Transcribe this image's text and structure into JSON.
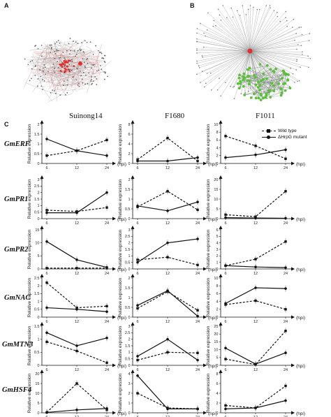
{
  "panels": {
    "a_label": "A",
    "b_label": "B",
    "c_label": "C"
  },
  "columns": [
    "Suinong14",
    "F1680",
    "F1011"
  ],
  "legend": {
    "wild_type": "Wild type",
    "mutant": "ΔHrpG mutant"
  },
  "axis": {
    "ylabel": "Relative expression",
    "unit": "(hpi)"
  },
  "colors": {
    "network_a_hub": "#e03030",
    "network_b_hub": "#e03030",
    "network_b_nodes": "#5bbf3a",
    "line": "#111111"
  },
  "chart_data": [
    {
      "gene": "GmERF",
      "column": "Suinong14",
      "type": "line",
      "x": [
        "6",
        "12",
        "24"
      ],
      "ylim": [
        0,
        2
      ],
      "yticks": [
        "0",
        "0.5",
        "1",
        "1.5",
        "2"
      ],
      "series": [
        {
          "name": "Wild type",
          "values": [
            0.4,
            0.65,
            1.2
          ]
        },
        {
          "name": "ΔHrpG mutant",
          "values": [
            1.25,
            0.65,
            0.4
          ]
        }
      ]
    },
    {
      "gene": "GmERF",
      "column": "F1680",
      "type": "line",
      "x": [
        "6",
        "12",
        "24"
      ],
      "ylim": [
        0,
        8
      ],
      "yticks": [
        "0",
        "2",
        "4",
        "6",
        "8"
      ],
      "series": [
        {
          "name": "Wild type",
          "values": [
            0.8,
            5.2,
            0.5
          ]
        },
        {
          "name": "ΔHrpG mutant",
          "values": [
            0.5,
            0.5,
            1.2
          ]
        }
      ]
    },
    {
      "gene": "GmERF",
      "column": "F1011",
      "type": "line",
      "x": [
        "6",
        "12",
        "24"
      ],
      "ylim": [
        0,
        10
      ],
      "yticks": [
        "0",
        "2",
        "4",
        "6",
        "8",
        "10"
      ],
      "series": [
        {
          "name": "Wild type",
          "values": [
            7,
            4.5,
            1.2
          ]
        },
        {
          "name": "ΔHrpG mutant",
          "values": [
            1.5,
            2.2,
            3.5
          ]
        }
      ]
    },
    {
      "gene": "GmPR1",
      "column": "Suinong14",
      "type": "line",
      "x": [
        "6",
        "12",
        "24"
      ],
      "ylim": [
        0,
        3
      ],
      "yticks": [
        "0",
        "0.5",
        "1",
        "1.5",
        "2",
        "2.5",
        "3"
      ],
      "series": [
        {
          "name": "Wild type",
          "values": [
            0.65,
            0.55,
            0.85
          ]
        },
        {
          "name": "ΔHrpG mutant",
          "values": [
            0.45,
            0.45,
            2.0
          ]
        }
      ]
    },
    {
      "gene": "GmPR1",
      "column": "F1680",
      "type": "line",
      "x": [
        "6",
        "12",
        "24"
      ],
      "ylim": [
        0,
        2
      ],
      "yticks": [
        "0",
        "0.5",
        "1",
        "1.5",
        "2"
      ],
      "series": [
        {
          "name": "Wild type",
          "values": [
            0.6,
            1.4,
            0.45
          ]
        },
        {
          "name": "ΔHrpG mutant",
          "values": [
            0.65,
            0.4,
            0.85
          ]
        }
      ]
    },
    {
      "gene": "GmPR1",
      "column": "F1011",
      "type": "line",
      "x": [
        "6",
        "12",
        "24"
      ],
      "ylim": [
        0,
        20
      ],
      "yticks": [
        "0",
        "5",
        "10",
        "15",
        "20"
      ],
      "series": [
        {
          "name": "Wild type",
          "values": [
            2,
            1,
            14
          ]
        },
        {
          "name": "ΔHrpG mutant",
          "values": [
            0.5,
            0.3,
            0.2
          ]
        }
      ]
    },
    {
      "gene": "GmPR2",
      "column": "Suinong14",
      "type": "line",
      "x": [
        "6",
        "12",
        "24"
      ],
      "ylim": [
        0,
        15
      ],
      "yticks": [
        "0",
        "5",
        "10",
        "15"
      ],
      "series": [
        {
          "name": "Wild type",
          "values": [
            0.3,
            0.3,
            0.3
          ]
        },
        {
          "name": "ΔHrpG mutant",
          "values": [
            10.5,
            3.5,
            0.6
          ]
        }
      ]
    },
    {
      "gene": "GmPR2",
      "column": "F1680",
      "type": "line",
      "x": [
        "6",
        "12",
        "24"
      ],
      "ylim": [
        0,
        3
      ],
      "yticks": [
        "0",
        "0.5",
        "1",
        "1.5",
        "2",
        "2.5",
        "3"
      ],
      "series": [
        {
          "name": "Wild type",
          "values": [
            0.7,
            0.9,
            0.3
          ]
        },
        {
          "name": "ΔHrpG mutant",
          "values": [
            0.5,
            2.0,
            2.3
          ]
        }
      ]
    },
    {
      "gene": "GmPR2",
      "column": "F1011",
      "type": "line",
      "x": [
        "6",
        "12",
        "24"
      ],
      "ylim": [
        0,
        6
      ],
      "yticks": [
        "0",
        "1",
        "2",
        "3",
        "4",
        "5",
        "6"
      ],
      "series": [
        {
          "name": "Wild type",
          "values": [
            0.5,
            1.5,
            4.2
          ]
        },
        {
          "name": "ΔHrpG mutant",
          "values": [
            0.5,
            0.3,
            0.2
          ]
        }
      ]
    },
    {
      "gene": "GmNAC",
      "column": "Suinong14",
      "type": "line",
      "x": [
        "6",
        "12",
        "24"
      ],
      "ylim": [
        0,
        2.5
      ],
      "yticks": [
        "0",
        "0.5",
        "1",
        "1.5",
        "2",
        "2.5"
      ],
      "series": [
        {
          "name": "Wild type",
          "values": [
            2.2,
            0.6,
            0.7
          ]
        },
        {
          "name": "ΔHrpG mutant",
          "values": [
            0.6,
            0.5,
            0.35
          ]
        }
      ]
    },
    {
      "gene": "GmNAC",
      "column": "F1680",
      "type": "line",
      "x": [
        "6",
        "12",
        "24"
      ],
      "ylim": [
        0,
        2
      ],
      "yticks": [
        "0",
        "0.5",
        "1",
        "1.5",
        "2"
      ],
      "series": [
        {
          "name": "Wild type",
          "values": [
            0.45,
            1.3,
            0.35
          ]
        },
        {
          "name": "ΔHrpG mutant",
          "values": [
            0.6,
            1.35,
            0.05
          ]
        }
      ]
    },
    {
      "gene": "GmNAC",
      "column": "F1011",
      "type": "line",
      "x": [
        "6",
        "12",
        "24"
      ],
      "ylim": [
        0,
        10
      ],
      "yticks": [
        "0",
        "2",
        "4",
        "6",
        "8",
        "10"
      ],
      "series": [
        {
          "name": "Wild type",
          "values": [
            3.2,
            4.2,
            2.0
          ]
        },
        {
          "name": "ΔHrpG mutant",
          "values": [
            3.5,
            7.5,
            7.3
          ]
        }
      ]
    },
    {
      "gene": "GmMTN3",
      "column": "Suinong14",
      "type": "line",
      "x": [
        "6",
        "12",
        "24"
      ],
      "ylim": [
        0,
        1.5
      ],
      "yticks": [
        "0",
        "0.5",
        "1",
        "1.5"
      ],
      "series": [
        {
          "name": "Wild type",
          "values": [
            0.9,
            0.55,
            0.1
          ]
        },
        {
          "name": "ΔHrpG mutant",
          "values": [
            1.25,
            0.75,
            1.05
          ]
        }
      ]
    },
    {
      "gene": "GmMTN3",
      "column": "F1680",
      "type": "line",
      "x": [
        "6",
        "12",
        "24"
      ],
      "ylim": [
        0,
        3
      ],
      "yticks": [
        "0",
        "0.5",
        "1",
        "1.5",
        "2",
        "2.5",
        "3"
      ],
      "series": [
        {
          "name": "Wild type",
          "values": [
            0.4,
            1.0,
            0.95
          ]
        },
        {
          "name": "ΔHrpG mutant",
          "values": [
            0.7,
            2.0,
            0.4
          ]
        }
      ]
    },
    {
      "gene": "GmMTN3",
      "column": "F1011",
      "type": "line",
      "x": [
        "6",
        "12",
        "24"
      ],
      "ylim": [
        0,
        25
      ],
      "yticks": [
        "0",
        "5",
        "10",
        "15",
        "20",
        "25"
      ],
      "series": [
        {
          "name": "Wild type",
          "values": [
            4,
            0.5,
            22
          ]
        },
        {
          "name": "ΔHrpG mutant",
          "values": [
            11,
            0.8,
            8
          ]
        }
      ]
    },
    {
      "gene": "GmHSF4",
      "column": "Suinong14",
      "type": "line",
      "x": [
        "6",
        "12",
        "24"
      ],
      "ylim": [
        0,
        20
      ],
      "yticks": [
        "0",
        "5",
        "10",
        "15",
        "20"
      ],
      "series": [
        {
          "name": "Wild type",
          "values": [
            0.2,
            15,
            1.5
          ]
        },
        {
          "name": "ΔHrpG mutant",
          "values": [
            0.2,
            1.5,
            2.2
          ]
        }
      ]
    },
    {
      "gene": "GmHSF4",
      "column": "F1680",
      "type": "line",
      "x": [
        "6",
        "12",
        "24"
      ],
      "ylim": [
        0,
        4
      ],
      "yticks": [
        "0",
        "1",
        "2",
        "3",
        "4"
      ],
      "series": [
        {
          "name": "Wild type",
          "values": [
            2.0,
            0.5,
            0.4
          ]
        },
        {
          "name": "ΔHrpG mutant",
          "values": [
            3.8,
            0.4,
            0.4
          ]
        }
      ]
    },
    {
      "gene": "GmHSF4",
      "column": "F1011",
      "type": "line",
      "x": [
        "6",
        "12",
        "24"
      ],
      "ylim": [
        0,
        8
      ],
      "yticks": [
        "0",
        "2",
        "4",
        "6",
        "8"
      ],
      "series": [
        {
          "name": "Wild type",
          "values": [
            1.5,
            1.0,
            5.5
          ]
        },
        {
          "name": "ΔHrpG mutant",
          "values": [
            0.8,
            1.0,
            2.5
          ]
        }
      ]
    }
  ]
}
